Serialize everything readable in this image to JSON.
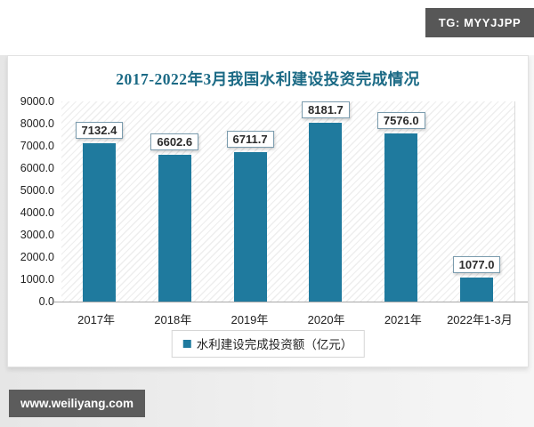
{
  "watermarks": {
    "top_right": "TG: MYYJJPP",
    "bottom_left": "www.weiliyang.com"
  },
  "colors": {
    "watermark_bg": "#575757",
    "watermark_text": "#FFFFFF",
    "card_bg": "#FFFFFF",
    "page_lower_bg": "#EBEBEB"
  },
  "chart_data": {
    "type": "bar",
    "title": "2017-2022年3月我国水利建设投资完成情况",
    "categories": [
      "2017年",
      "2018年",
      "2019年",
      "2020年",
      "2021年",
      "2022年1-3月"
    ],
    "values": [
      7132.4,
      6602.6,
      6711.7,
      8181.7,
      7576.0,
      1077.0
    ],
    "value_labels": [
      "7132.4",
      "6602.6",
      "6711.7",
      "8181.7",
      "7576.0",
      "1077.0"
    ],
    "legend": "水利建设完成投资额（亿元）",
    "legend_position": "bottom",
    "xlabel": "",
    "ylabel": "",
    "ylim": [
      0,
      9000
    ],
    "ytick_step": 1000,
    "ytick_labels": [
      "0.0",
      "1000.0",
      "2000.0",
      "3000.0",
      "4000.0",
      "5000.0",
      "6000.0",
      "7000.0",
      "8000.0",
      "9000.0"
    ],
    "grid": false,
    "plot_background": "diagonal-hatch",
    "colors": {
      "bar": "#1F7A9E",
      "title": "#1B6A85",
      "data_label_border": "#7B9CAE",
      "axis_line": "#A8A8A8"
    }
  }
}
